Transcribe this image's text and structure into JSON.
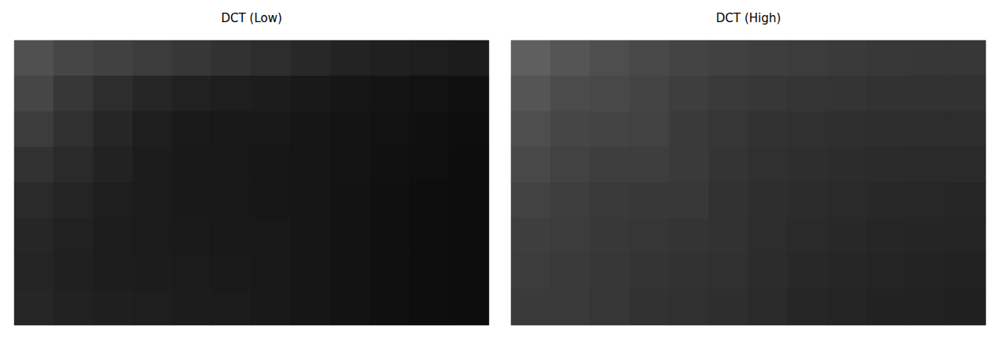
{
  "chart_data": [
    {
      "type": "heatmap",
      "title": "DCT (Low)",
      "tick_labels": false,
      "cells": [
        [
          80,
          70,
          65,
          60,
          55,
          50,
          45,
          40,
          35,
          32,
          30,
          28
        ],
        [
          70,
          55,
          45,
          38,
          33,
          30,
          28,
          25,
          22,
          20,
          18,
          16
        ],
        [
          60,
          48,
          38,
          30,
          26,
          25,
          24,
          22,
          20,
          18,
          16,
          14
        ],
        [
          50,
          42,
          34,
          28,
          25,
          24,
          23,
          22,
          20,
          17,
          15,
          13
        ],
        [
          42,
          36,
          30,
          27,
          25,
          24,
          23,
          22,
          19,
          16,
          14,
          12
        ],
        [
          38,
          33,
          29,
          27,
          26,
          25,
          24,
          22,
          19,
          16,
          14,
          12
        ],
        [
          36,
          32,
          29,
          28,
          27,
          26,
          24,
          22,
          19,
          16,
          14,
          12
        ],
        [
          38,
          34,
          31,
          30,
          28,
          27,
          25,
          22,
          19,
          16,
          14,
          12
        ]
      ]
    },
    {
      "type": "heatmap",
      "title": "DCT (High)",
      "tick_labels": false,
      "cells": [
        [
          95,
          85,
          78,
          72,
          68,
          65,
          62,
          60,
          58,
          56,
          55,
          55
        ],
        [
          85,
          75,
          72,
          68,
          62,
          58,
          55,
          53,
          52,
          50,
          50,
          50
        ],
        [
          78,
          70,
          68,
          66,
          58,
          54,
          50,
          48,
          47,
          46,
          45,
          45
        ],
        [
          72,
          66,
          62,
          62,
          58,
          52,
          48,
          46,
          44,
          43,
          42,
          42
        ],
        [
          66,
          62,
          58,
          56,
          56,
          50,
          46,
          44,
          42,
          40,
          39,
          38
        ],
        [
          62,
          60,
          56,
          54,
          52,
          50,
          45,
          42,
          40,
          38,
          37,
          36
        ],
        [
          60,
          58,
          55,
          52,
          50,
          48,
          44,
          40,
          38,
          36,
          35,
          34
        ],
        [
          58,
          58,
          54,
          50,
          48,
          46,
          42,
          38,
          36,
          34,
          33,
          32
        ]
      ]
    }
  ]
}
